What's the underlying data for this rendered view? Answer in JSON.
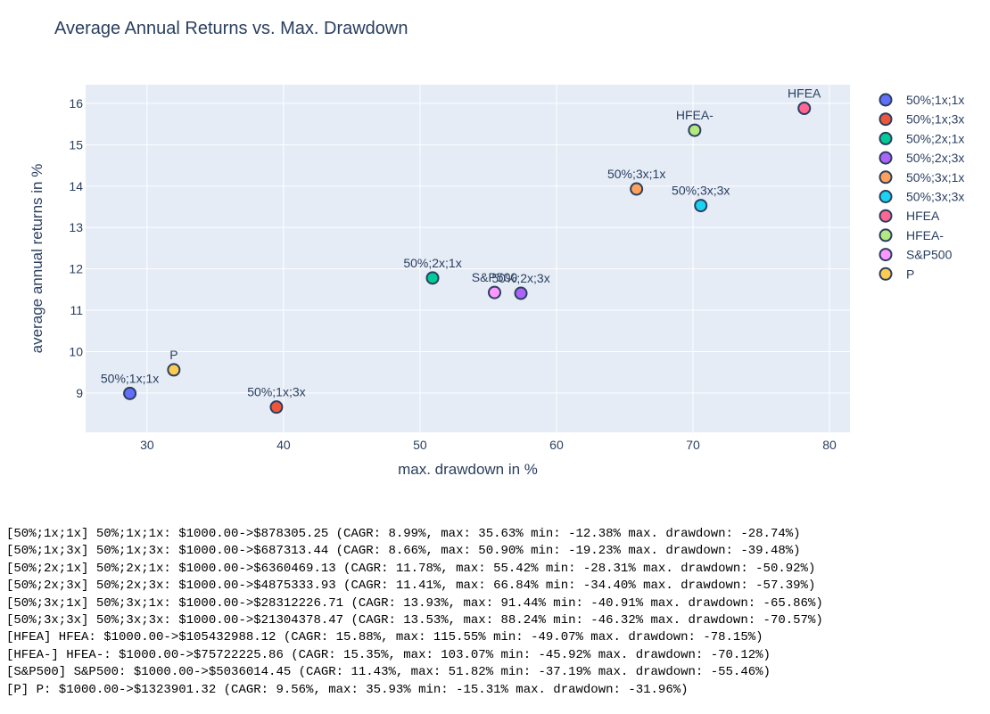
{
  "chart_data": {
    "type": "scatter",
    "title": "Average Annual Returns vs. Max. Drawdown",
    "xlabel": "max. drawdown in %",
    "ylabel": "average annual returns in %",
    "xlim": [
      25.5,
      81.5
    ],
    "ylim": [
      8.05,
      16.45
    ],
    "xticks": [
      30,
      40,
      50,
      60,
      70,
      80
    ],
    "yticks": [
      9,
      10,
      11,
      12,
      13,
      14,
      15,
      16
    ],
    "grid": true,
    "legend": "right",
    "series": [
      {
        "name": "50%;1x;1x",
        "label": "50%;1x;1x",
        "x": 28.74,
        "y": 8.99,
        "color": "#636efa"
      },
      {
        "name": "50%;1x;3x",
        "label": "50%;1x;3x",
        "x": 39.48,
        "y": 8.66,
        "color": "#ef553b"
      },
      {
        "name": "50%;2x;1x",
        "label": "50%;2x;1x",
        "x": 50.92,
        "y": 11.78,
        "color": "#00cc96"
      },
      {
        "name": "50%;2x;3x",
        "label": "50%;2x;3x",
        "x": 57.39,
        "y": 11.41,
        "color": "#ab63fa"
      },
      {
        "name": "50%;3x;1x",
        "label": "50%;3x;1x",
        "x": 65.86,
        "y": 13.93,
        "color": "#ffa15a"
      },
      {
        "name": "50%;3x;3x",
        "label": "50%;3x;3x",
        "x": 70.57,
        "y": 13.53,
        "color": "#19d3f3"
      },
      {
        "name": "HFEA",
        "label": "HFEA",
        "x": 78.15,
        "y": 15.88,
        "color": "#ff6692"
      },
      {
        "name": "HFEA-",
        "label": "HFEA-",
        "x": 70.12,
        "y": 15.35,
        "color": "#b6e880"
      },
      {
        "name": "S&P500",
        "label": "S&P500",
        "x": 55.46,
        "y": 11.43,
        "color": "#ff97ff"
      },
      {
        "name": "P",
        "label": "P",
        "x": 31.96,
        "y": 9.56,
        "color": "#fecb52"
      }
    ]
  },
  "output_lines": [
    "[50%;1x;1x] 50%;1x;1x: $1000.00->$878305.25 (CAGR: 8.99%, max: 35.63% min: -12.38% max. drawdown: -28.74%)",
    "[50%;1x;3x] 50%;1x;3x: $1000.00->$687313.44 (CAGR: 8.66%, max: 50.90% min: -19.23% max. drawdown: -39.48%)",
    "[50%;2x;1x] 50%;2x;1x: $1000.00->$6360469.13 (CAGR: 11.78%, max: 55.42% min: -28.31% max. drawdown: -50.92%)",
    "[50%;2x;3x] 50%;2x;3x: $1000.00->$4875333.93 (CAGR: 11.41%, max: 66.84% min: -34.40% max. drawdown: -57.39%)",
    "[50%;3x;1x] 50%;3x;1x: $1000.00->$28312226.71 (CAGR: 13.93%, max: 91.44% min: -40.91% max. drawdown: -65.86%)",
    "[50%;3x;3x] 50%;3x;3x: $1000.00->$21304378.47 (CAGR: 13.53%, max: 88.24% min: -46.32% max. drawdown: -70.57%)",
    "[HFEA] HFEA: $1000.00->$105432988.12 (CAGR: 15.88%, max: 115.55% min: -49.07% max. drawdown: -78.15%)",
    "[HFEA-] HFEA-: $1000.00->$75722225.86 (CAGR: 15.35%, max: 103.07% min: -45.92% max. drawdown: -70.12%)",
    "[S&P500] S&P500: $1000.00->$5036014.45 (CAGR: 11.43%, max: 51.82% min: -37.19% max. drawdown: -55.46%)",
    "[P] P: $1000.00->$1323901.32 (CAGR: 9.56%, max: 35.93% min: -15.31% max. drawdown: -31.96%)"
  ]
}
